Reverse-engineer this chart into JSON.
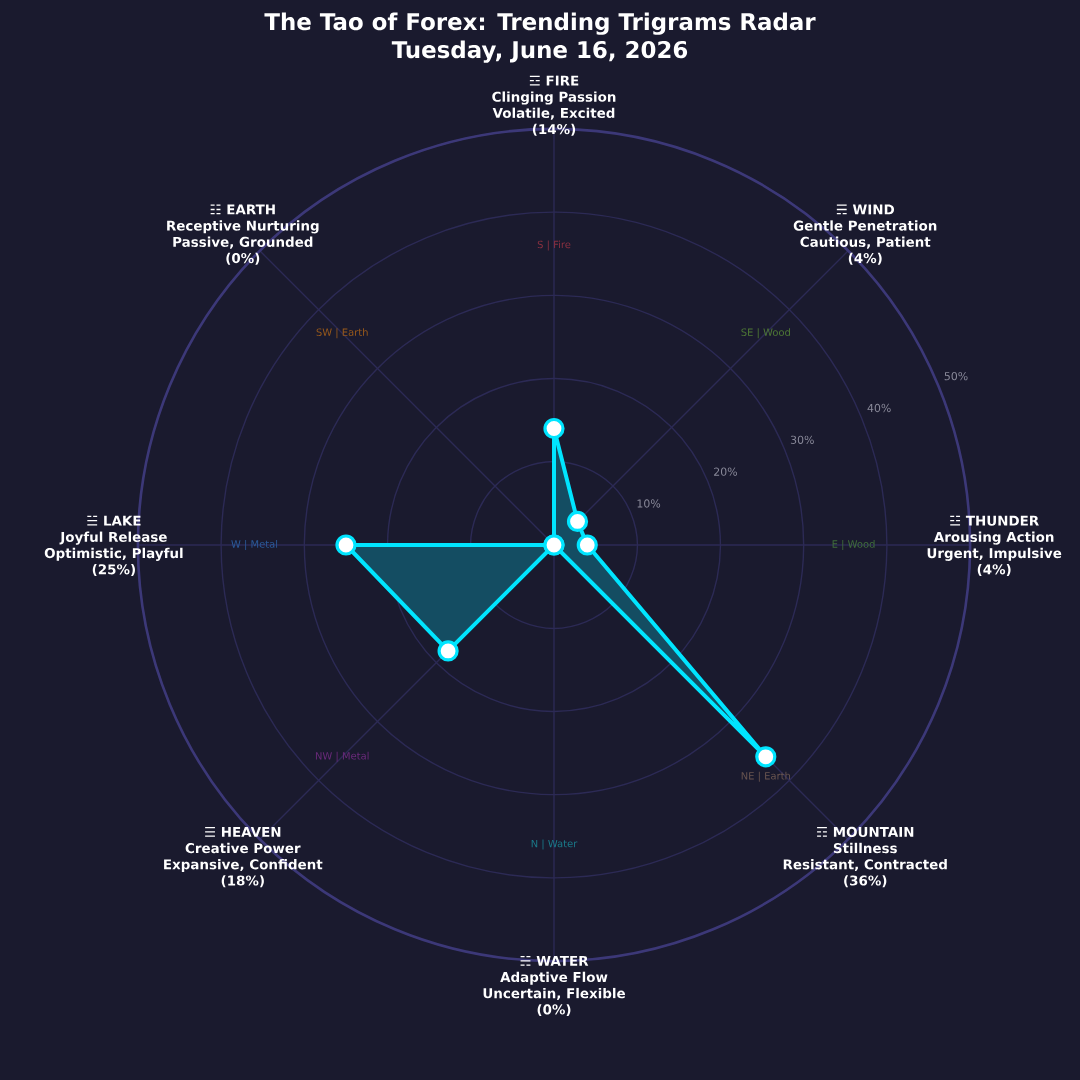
{
  "chart_data": {
    "type": "radar",
    "title": "The Tao of Forex: Trending Trigrams Radar",
    "subtitle": "Tuesday, June 16, 2026",
    "categories": [
      "☲ FIRE",
      "☴ WIND",
      "☳ THUNDER",
      "☶ MOUNTAIN",
      "☵ WATER",
      "☰ HEAVEN",
      "☱ LAKE",
      "☷ EARTH"
    ],
    "series": [
      {
        "color": "#00e5ff",
        "values": [
          14,
          4,
          4,
          36,
          0,
          18,
          25,
          0
        ]
      }
    ],
    "ylim": [
      0,
      50
    ],
    "yticks": [
      {
        "value": 10,
        "label": "10%"
      },
      {
        "value": 20,
        "label": "20%"
      },
      {
        "value": 30,
        "label": "30%"
      },
      {
        "value": 40,
        "label": "40%"
      },
      {
        "value": 50,
        "label": "50%"
      }
    ],
    "grid": true,
    "marker": "circle",
    "annotations": [
      "Clinging Passion",
      "Volatile, Excited",
      "(14%)",
      "Gentle Penetration",
      "Cautious, Patient",
      "(4%)",
      "Arousing Action",
      "Urgent, Impulsive",
      "(4%)",
      "Stillness",
      "Resistant, Contracted",
      "(36%)",
      "Adaptive Flow",
      "Uncertain, Flexible",
      "(0%)",
      "Creative Power",
      "Expansive, Confident",
      "(18%)",
      "Joyful Release",
      "Optimistic, Playful",
      "(25%)",
      "Receptive Nurturing",
      "Passive, Grounded",
      "(0%)",
      "S | Fire",
      "SE | Wood",
      "E | Wood",
      "NE | Earth",
      "N | Water",
      "NW | Metal",
      "W | Metal",
      "SW | Earth"
    ]
  }
}
